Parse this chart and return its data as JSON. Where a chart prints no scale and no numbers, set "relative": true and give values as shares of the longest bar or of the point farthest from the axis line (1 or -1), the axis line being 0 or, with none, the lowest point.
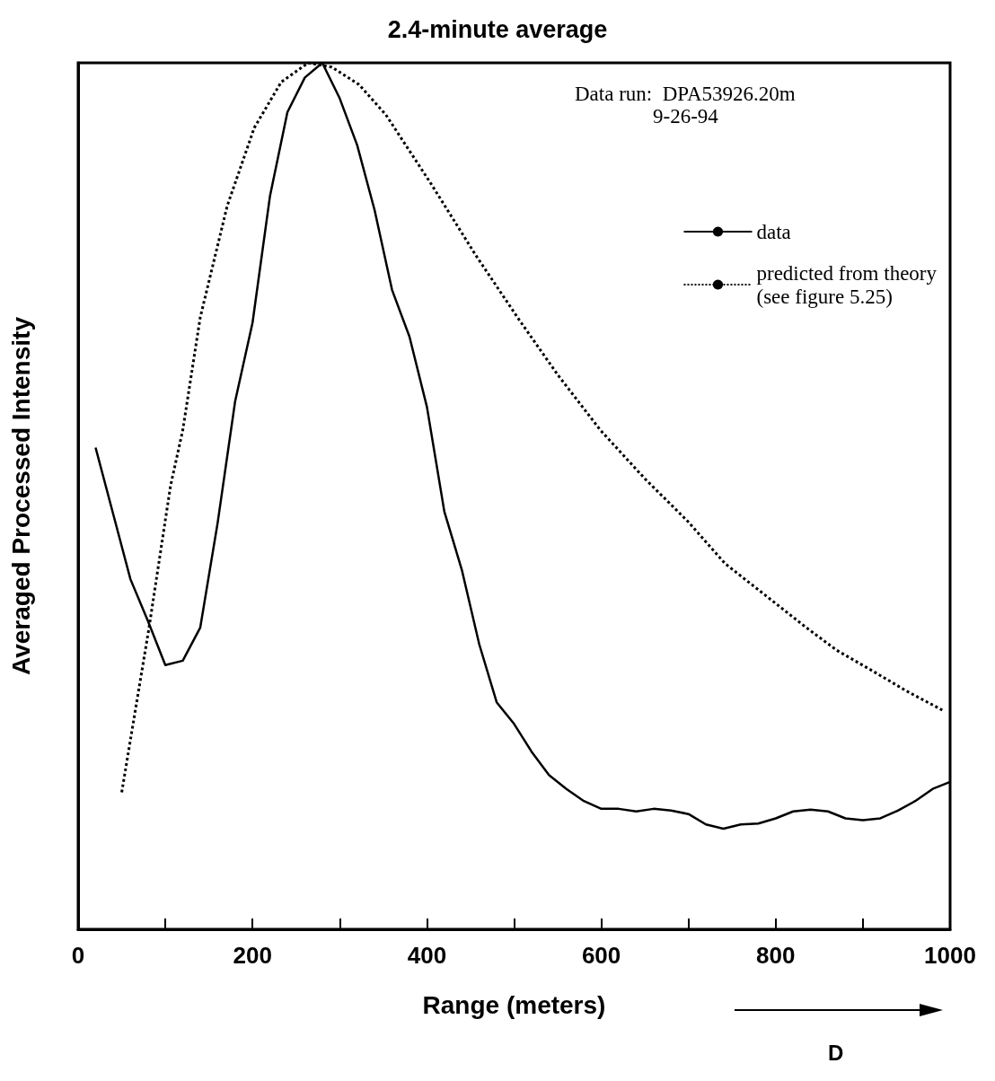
{
  "chart_data": {
    "type": "line",
    "title": "2.4-minute average",
    "xlabel": "Range (meters)",
    "ylabel": "Averaged Processed Intensity",
    "annotations": [
      "Data run:  DPA53926.20m",
      "9-26-94",
      "D"
    ],
    "relative": true,
    "marker": "none",
    "legend": "top right",
    "xlim": [
      0,
      1000
    ],
    "xticks": [
      0,
      {
        "value": 100,
        "label": null
      },
      200,
      {
        "value": 300,
        "label": null
      },
      400,
      {
        "value": 500,
        "label": null
      },
      600,
      {
        "value": 700,
        "label": null
      },
      800,
      {
        "value": 900,
        "label": null
      },
      1000
    ],
    "series": [
      {
        "name": "data",
        "color": "#000000",
        "line_style": "solid",
        "x": [
          20,
          40,
          60,
          80,
          100,
          120,
          140,
          160,
          180,
          200,
          220,
          240,
          260,
          280,
          300,
          320,
          340,
          360,
          380,
          400,
          420,
          440,
          460,
          480,
          500,
          520,
          540,
          560,
          580,
          600,
          620,
          640,
          660,
          680,
          700,
          720,
          740,
          760,
          780,
          800,
          820,
          840,
          860,
          880,
          900,
          920,
          940,
          960,
          980,
          1000
        ],
        "values": [
          0.556,
          0.48,
          0.404,
          0.356,
          0.305,
          0.31,
          0.348,
          0.469,
          0.609,
          0.7,
          0.846,
          0.943,
          0.983,
          1.0,
          0.959,
          0.905,
          0.83,
          0.738,
          0.684,
          0.603,
          0.482,
          0.415,
          0.329,
          0.262,
          0.237,
          0.205,
          0.178,
          0.162,
          0.148,
          0.139,
          0.139,
          0.136,
          0.139,
          0.137,
          0.133,
          0.121,
          0.116,
          0.121,
          0.122,
          0.128,
          0.136,
          0.138,
          0.136,
          0.128,
          0.126,
          0.128,
          0.137,
          0.148,
          0.162,
          0.17
        ]
      },
      {
        "name": "predicted from theory\n(see figure 5.25)",
        "color": "#000000",
        "line_style": "dotted",
        "x": [
          50,
          81,
          106,
          120,
          140,
          171,
          202,
          233,
          264,
          291,
          322,
          353,
          405,
          456,
          504,
          550,
          599,
          650,
          700,
          742,
          790,
          834,
          870,
          908,
          950,
          991
        ],
        "values": [
          0.158,
          0.346,
          0.512,
          0.576,
          0.706,
          0.835,
          0.925,
          0.978,
          1.0,
          0.995,
          0.975,
          0.94,
          0.86,
          0.778,
          0.706,
          0.64,
          0.576,
          0.52,
          0.47,
          0.422,
          0.384,
          0.349,
          0.322,
          0.3,
          0.275,
          0.253
        ]
      }
    ]
  }
}
